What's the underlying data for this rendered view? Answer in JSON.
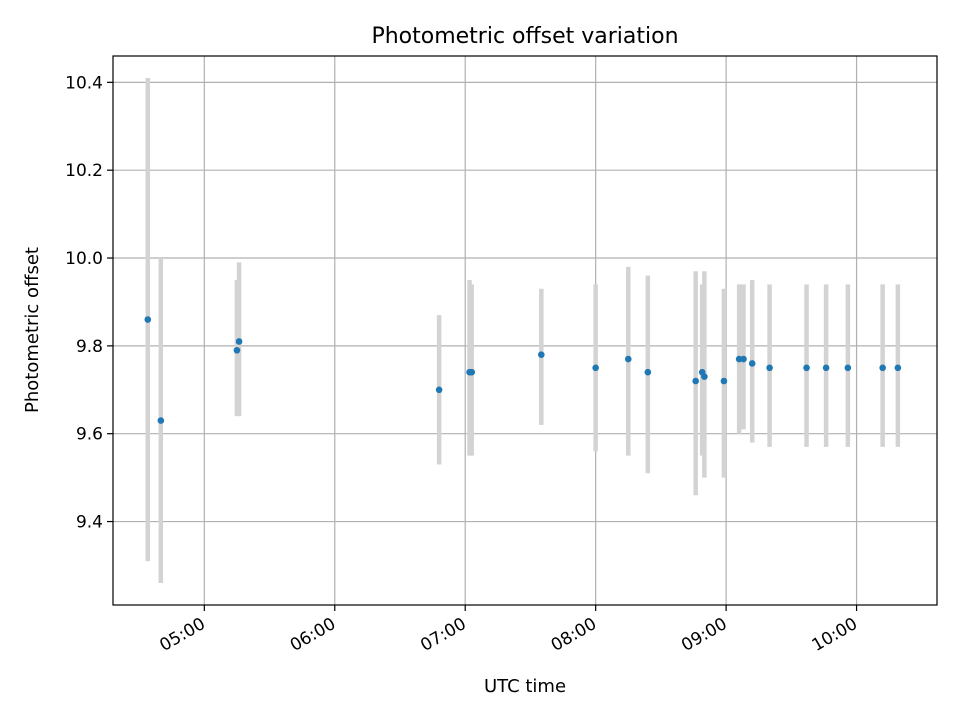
{
  "chart_data": {
    "type": "scatter",
    "title": "Photometric offset variation",
    "xlabel": "UTC time",
    "ylabel": "Photometric offset",
    "x_unit": "UTC time (HH:MM)",
    "xlim": [
      "04:18",
      "10:37"
    ],
    "ylim": [
      9.21,
      10.46
    ],
    "x_ticks": [
      "05:00",
      "06:00",
      "07:00",
      "08:00",
      "09:00",
      "10:00"
    ],
    "y_ticks": [
      9.4,
      9.6,
      9.8,
      10.0,
      10.2,
      10.4
    ],
    "y_tick_labels": [
      "9.4",
      "9.6",
      "9.8",
      "10.0",
      "10.2",
      "10.4"
    ],
    "grid": true,
    "legend": "none",
    "marker_color": "#1f77b4",
    "errorbar_color": "#d3d3d3",
    "points": [
      {
        "x": "04:34",
        "y": 9.86,
        "ylo": 9.31,
        "yhi": 10.41
      },
      {
        "x": "04:40",
        "y": 9.63,
        "ylo": 9.26,
        "yhi": 10.0
      },
      {
        "x": "05:15",
        "y": 9.79,
        "ylo": 9.64,
        "yhi": 9.95
      },
      {
        "x": "05:16",
        "y": 9.81,
        "ylo": 9.64,
        "yhi": 9.99
      },
      {
        "x": "06:48",
        "y": 9.7,
        "ylo": 9.53,
        "yhi": 9.87
      },
      {
        "x": "07:02",
        "y": 9.74,
        "ylo": 9.55,
        "yhi": 9.95
      },
      {
        "x": "07:03",
        "y": 9.74,
        "ylo": 9.55,
        "yhi": 9.94
      },
      {
        "x": "07:35",
        "y": 9.78,
        "ylo": 9.62,
        "yhi": 9.93
      },
      {
        "x": "08:00",
        "y": 9.75,
        "ylo": 9.56,
        "yhi": 9.94
      },
      {
        "x": "08:15",
        "y": 9.77,
        "ylo": 9.55,
        "yhi": 9.98
      },
      {
        "x": "08:24",
        "y": 9.74,
        "ylo": 9.51,
        "yhi": 9.96
      },
      {
        "x": "08:46",
        "y": 9.72,
        "ylo": 9.46,
        "yhi": 9.97
      },
      {
        "x": "08:49",
        "y": 9.74,
        "ylo": 9.55,
        "yhi": 9.94
      },
      {
        "x": "08:50",
        "y": 9.73,
        "ylo": 9.5,
        "yhi": 9.97
      },
      {
        "x": "08:59",
        "y": 9.72,
        "ylo": 9.5,
        "yhi": 9.93
      },
      {
        "x": "09:06",
        "y": 9.77,
        "ylo": 9.6,
        "yhi": 9.94
      },
      {
        "x": "09:08",
        "y": 9.77,
        "ylo": 9.61,
        "yhi": 9.94
      },
      {
        "x": "09:12",
        "y": 9.76,
        "ylo": 9.58,
        "yhi": 9.95
      },
      {
        "x": "09:20",
        "y": 9.75,
        "ylo": 9.57,
        "yhi": 9.94
      },
      {
        "x": "09:37",
        "y": 9.75,
        "ylo": 9.57,
        "yhi": 9.94
      },
      {
        "x": "09:46",
        "y": 9.75,
        "ylo": 9.57,
        "yhi": 9.94
      },
      {
        "x": "09:56",
        "y": 9.75,
        "ylo": 9.57,
        "yhi": 9.94
      },
      {
        "x": "10:12",
        "y": 9.75,
        "ylo": 9.57,
        "yhi": 9.94
      },
      {
        "x": "10:19",
        "y": 9.75,
        "ylo": 9.57,
        "yhi": 9.94
      }
    ]
  }
}
